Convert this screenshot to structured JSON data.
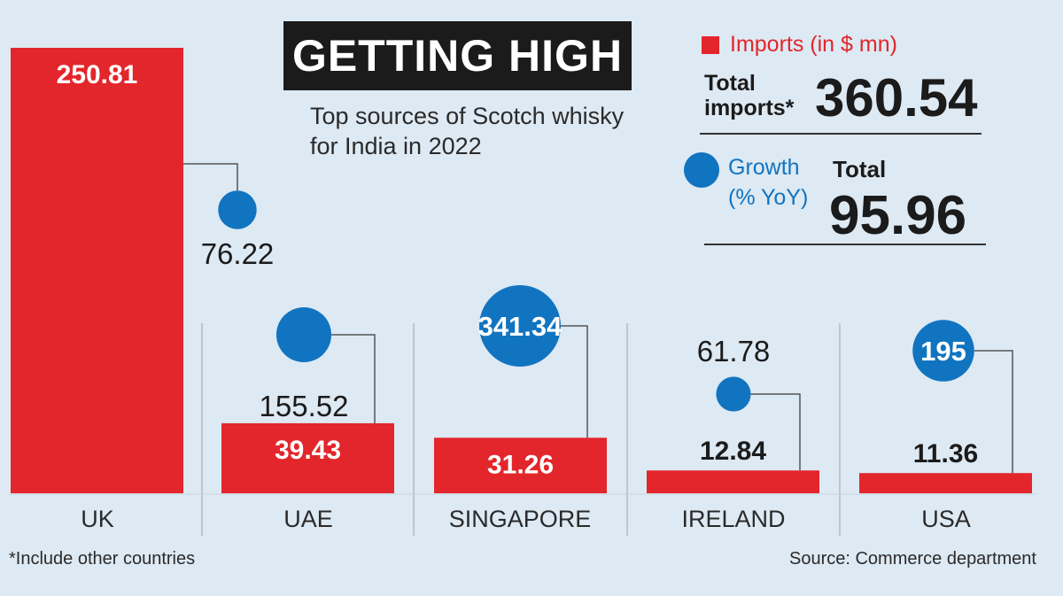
{
  "title": "GETTING HIGH",
  "subtitle": "Top sources of Scotch whisky for India in 2022",
  "legend": {
    "imports_label": "Imports (in $ mn)",
    "growth_label_line1": "Growth",
    "growth_label_line2": "(% YoY)"
  },
  "totals": {
    "imports_label_line1": "Total",
    "imports_label_line2": "imports*",
    "imports_value": "360.54",
    "growth_label": "Total",
    "growth_value": "95.96"
  },
  "footnote": "*Include other countries",
  "source": "Source: Commerce department",
  "colors": {
    "bar": "#e3262b",
    "bubble": "#1174c0",
    "background": "#dde9f3"
  },
  "chart_data": {
    "type": "bar",
    "categories": [
      "UK",
      "UAE",
      "SINGAPORE",
      "IRELAND",
      "USA"
    ],
    "series": [
      {
        "name": "Imports (in $ mn)",
        "values": [
          250.81,
          39.43,
          31.26,
          12.84,
          11.36
        ]
      },
      {
        "name": "Growth (% YoY)",
        "values": [
          76.22,
          155.52,
          341.34,
          61.78,
          195
        ]
      }
    ],
    "value_labels": {
      "imports": [
        "250.81",
        "39.43",
        "31.26",
        "12.84",
        "11.36"
      ],
      "growth": [
        "76.22",
        "155.52",
        "341.34",
        "61.78",
        "195"
      ]
    }
  }
}
